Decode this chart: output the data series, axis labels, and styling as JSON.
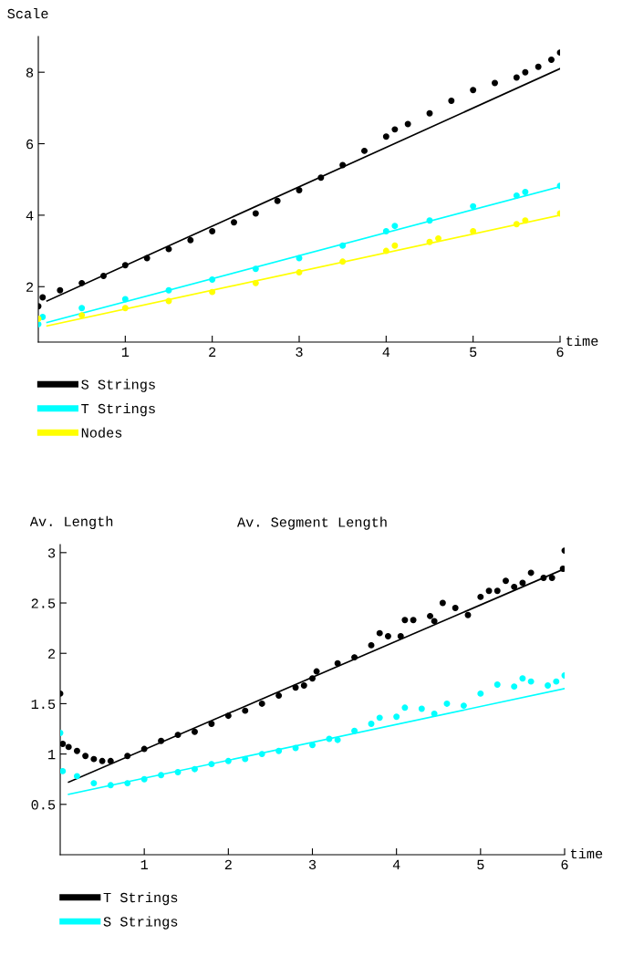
{
  "chart_data": [
    {
      "type": "scatter",
      "ylabel": "Scale",
      "xlabel": "time",
      "xlim": [
        0,
        6
      ],
      "ylim": [
        0.45,
        9.0
      ],
      "xticks": [
        1,
        2,
        3,
        4,
        5,
        6
      ],
      "yticks": [
        2,
        4,
        6,
        8
      ],
      "grid": false,
      "legend": "bottom",
      "marker": "circle",
      "series": [
        {
          "name": "S Strings",
          "color": "#000000",
          "x": [
            0,
            0.05,
            0.25,
            0.5,
            0.75,
            1,
            1.25,
            1.5,
            1.75,
            2,
            2.25,
            2.5,
            2.75,
            3,
            3.25,
            3.5,
            3.75,
            4,
            4.1,
            4.25,
            4.5,
            4.75,
            5,
            5.25,
            5.5,
            5.6,
            5.75,
            5.9,
            6
          ],
          "values": [
            1.45,
            1.7,
            1.9,
            2.1,
            2.3,
            2.6,
            2.8,
            3.05,
            3.3,
            3.55,
            3.8,
            4.05,
            4.4,
            4.7,
            5.05,
            5.4,
            5.8,
            6.2,
            6.4,
            6.55,
            6.85,
            7.2,
            7.5,
            7.7,
            7.85,
            8.0,
            8.15,
            8.35,
            8.55
          ]
        },
        {
          "name": "T Strings",
          "color": "#00ffff",
          "x": [
            0,
            0.05,
            0.5,
            1,
            1.5,
            2,
            2.5,
            3,
            3.5,
            4,
            4.1,
            4.5,
            5,
            5.5,
            5.6,
            6
          ],
          "values": [
            0.95,
            1.15,
            1.4,
            1.65,
            1.9,
            2.2,
            2.5,
            2.8,
            3.15,
            3.55,
            3.7,
            3.85,
            4.25,
            4.55,
            4.65,
            4.82
          ]
        },
        {
          "name": "Nodes",
          "color": "#ffff00",
          "x": [
            0,
            0.5,
            1,
            1.5,
            2,
            2.5,
            3,
            3.5,
            4,
            4.1,
            4.5,
            4.6,
            5,
            5.5,
            5.6,
            6
          ],
          "values": [
            1.1,
            1.2,
            1.4,
            1.6,
            1.85,
            2.1,
            2.4,
            2.7,
            3.0,
            3.15,
            3.25,
            3.35,
            3.55,
            3.75,
            3.85,
            4.05
          ]
        },
        {
          "type": "line",
          "marker": "none",
          "color": "#000000",
          "x": [
            0.1,
            6
          ],
          "values": [
            1.6,
            8.1
          ]
        },
        {
          "type": "line",
          "marker": "none",
          "color": "#00ffff",
          "x": [
            0.1,
            6
          ],
          "values": [
            1.0,
            4.8
          ]
        },
        {
          "type": "line",
          "marker": "none",
          "color": "#ffff00",
          "x": [
            0.1,
            6
          ],
          "values": [
            0.9,
            4.0
          ]
        }
      ]
    },
    {
      "type": "scatter",
      "title": "Av. Segment Length",
      "ylabel": "Av. Length",
      "xlabel": "time",
      "xlim": [
        0,
        6
      ],
      "ylim": [
        0,
        3.08
      ],
      "xticks": [
        1,
        2,
        3,
        4,
        5,
        6
      ],
      "yticks": [
        0.5,
        1,
        1.5,
        2,
        2.5,
        3
      ],
      "grid": false,
      "legend": "bottom",
      "marker": "circle",
      "series": [
        {
          "name": "T Strings",
          "color": "#000000",
          "x": [
            0,
            0.03,
            0.1,
            0.2,
            0.3,
            0.4,
            0.5,
            0.6,
            0.8,
            1,
            1.2,
            1.4,
            1.6,
            1.8,
            2,
            2.2,
            2.4,
            2.6,
            2.8,
            2.9,
            3,
            3.05,
            3.3,
            3.5,
            3.7,
            3.8,
            3.9,
            4.05,
            4.1,
            4.2,
            4.4,
            4.45,
            4.55,
            4.7,
            4.85,
            5,
            5.1,
            5.2,
            5.3,
            5.4,
            5.5,
            5.6,
            5.75,
            5.85,
            5.98,
            6
          ],
          "values": [
            1.6,
            1.1,
            1.07,
            1.03,
            0.98,
            0.95,
            0.93,
            0.93,
            0.98,
            1.05,
            1.13,
            1.19,
            1.22,
            1.3,
            1.38,
            1.43,
            1.5,
            1.58,
            1.66,
            1.68,
            1.75,
            1.82,
            1.9,
            1.96,
            2.08,
            2.2,
            2.17,
            2.17,
            2.33,
            2.33,
            2.37,
            2.32,
            2.5,
            2.45,
            2.38,
            2.56,
            2.62,
            2.62,
            2.72,
            2.66,
            2.7,
            2.8,
            2.75,
            2.75,
            2.84,
            3.02
          ]
        },
        {
          "name": "S Strings",
          "color": "#00ffff",
          "x": [
            0,
            0.03,
            0.2,
            0.4,
            0.6,
            0.8,
            1,
            1.2,
            1.4,
            1.6,
            1.8,
            2,
            2.2,
            2.4,
            2.6,
            2.8,
            3,
            3.2,
            3.3,
            3.5,
            3.7,
            3.8,
            4,
            4.1,
            4.3,
            4.45,
            4.6,
            4.8,
            5,
            5.2,
            5.4,
            5.5,
            5.6,
            5.8,
            5.9,
            6
          ],
          "values": [
            1.21,
            0.83,
            0.78,
            0.71,
            0.69,
            0.71,
            0.75,
            0.79,
            0.82,
            0.85,
            0.9,
            0.93,
            0.95,
            1.0,
            1.03,
            1.06,
            1.09,
            1.15,
            1.14,
            1.23,
            1.3,
            1.36,
            1.37,
            1.46,
            1.45,
            1.4,
            1.5,
            1.48,
            1.6,
            1.69,
            1.67,
            1.75,
            1.72,
            1.68,
            1.72,
            1.78
          ]
        },
        {
          "type": "line",
          "marker": "none",
          "color": "#000000",
          "x": [
            0.1,
            6
          ],
          "values": [
            0.72,
            2.84
          ]
        },
        {
          "type": "line",
          "marker": "none",
          "color": "#00ffff",
          "x": [
            0.1,
            6
          ],
          "values": [
            0.6,
            1.65
          ]
        }
      ]
    }
  ]
}
